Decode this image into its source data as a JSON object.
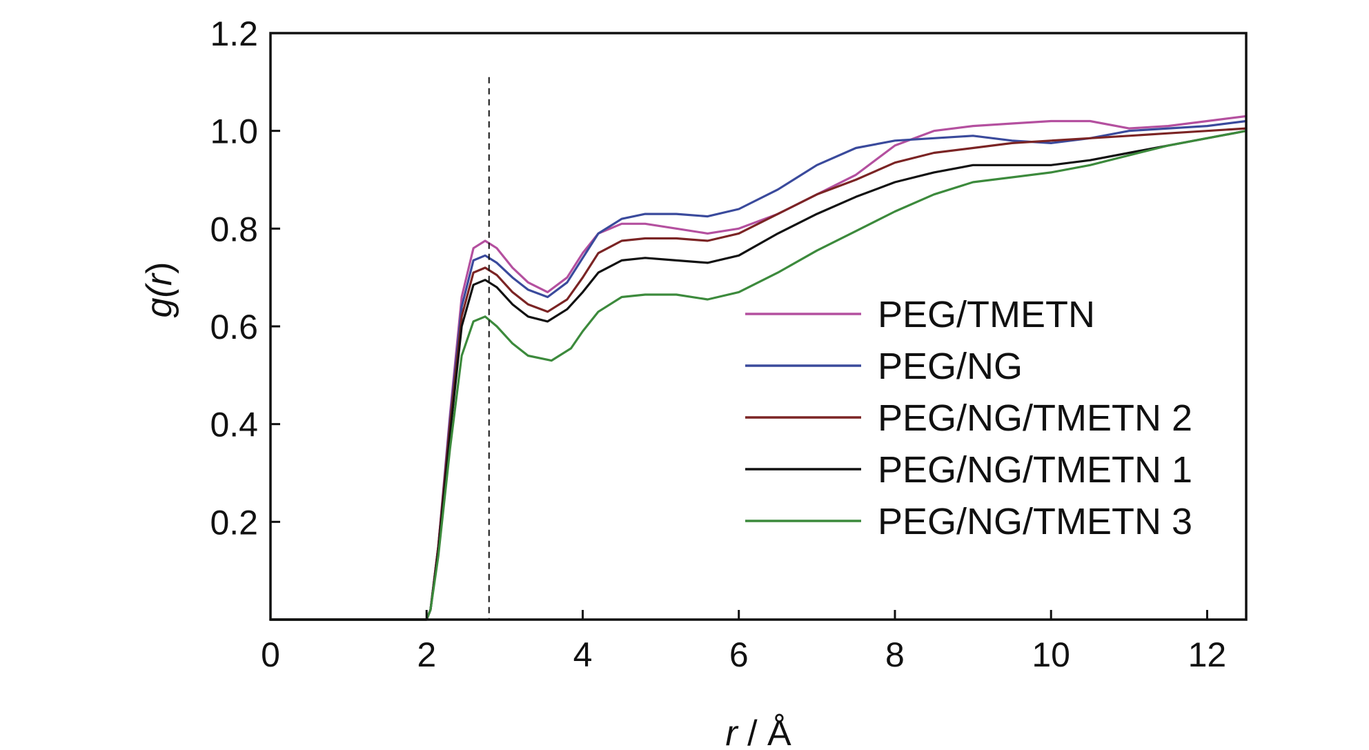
{
  "chart_data": {
    "type": "line",
    "xlabel_var": "r",
    "xlabel_unit": " / Å",
    "ylabel_fn": "g(",
    "ylabel_var": "r",
    "ylabel_close": ")",
    "xlim": [
      0,
      12.5
    ],
    "ylim": [
      0,
      1.2
    ],
    "xticks": [
      0,
      2,
      4,
      6,
      8,
      10,
      12
    ],
    "xtick_labels": [
      "0",
      "2",
      "4",
      "6",
      "8",
      "10",
      "12"
    ],
    "yticks": [
      0.2,
      0.4,
      0.6,
      0.8,
      1.0,
      1.2
    ],
    "ytick_labels": [
      "0.2",
      "0.4",
      "0.6",
      "0.8",
      "1.0",
      "1.2"
    ],
    "grid": false,
    "legend_position": "right-middle",
    "reference_line": {
      "style": "dashed",
      "x": 2.8,
      "y_max": 1.11
    },
    "series": [
      {
        "name": "PEG/TMETN",
        "color": "#b4509f",
        "x": [
          0,
          2.0,
          2.05,
          2.15,
          2.3,
          2.45,
          2.6,
          2.75,
          2.9,
          3.1,
          3.3,
          3.55,
          3.8,
          4.0,
          4.2,
          4.5,
          4.8,
          5.2,
          5.6,
          6.0,
          6.5,
          7.0,
          7.5,
          8.0,
          8.5,
          9.0,
          9.5,
          10.0,
          10.5,
          11.0,
          11.5,
          12.0,
          12.5
        ],
        "y": [
          0,
          0,
          0.02,
          0.15,
          0.42,
          0.66,
          0.76,
          0.775,
          0.76,
          0.72,
          0.69,
          0.67,
          0.7,
          0.75,
          0.79,
          0.81,
          0.81,
          0.8,
          0.79,
          0.8,
          0.83,
          0.87,
          0.91,
          0.97,
          1.0,
          1.01,
          1.015,
          1.02,
          1.02,
          1.005,
          1.01,
          1.02,
          1.03
        ]
      },
      {
        "name": "PEG/NG",
        "color": "#3a4a9c",
        "x": [
          0,
          2.0,
          2.05,
          2.15,
          2.3,
          2.45,
          2.6,
          2.75,
          2.9,
          3.1,
          3.3,
          3.55,
          3.8,
          4.0,
          4.2,
          4.5,
          4.8,
          5.2,
          5.6,
          6.0,
          6.5,
          7.0,
          7.5,
          8.0,
          8.5,
          9.0,
          9.5,
          10.0,
          10.5,
          11.0,
          11.5,
          12.0,
          12.5
        ],
        "y": [
          0,
          0,
          0.02,
          0.15,
          0.41,
          0.64,
          0.735,
          0.745,
          0.73,
          0.7,
          0.675,
          0.66,
          0.69,
          0.74,
          0.79,
          0.82,
          0.83,
          0.83,
          0.825,
          0.84,
          0.88,
          0.93,
          0.965,
          0.98,
          0.985,
          0.99,
          0.98,
          0.975,
          0.985,
          1.0,
          1.005,
          1.01,
          1.02
        ]
      },
      {
        "name": "PEG/NG/TMETN 2",
        "color": "#7b2424",
        "x": [
          0,
          2.0,
          2.05,
          2.15,
          2.3,
          2.45,
          2.6,
          2.75,
          2.9,
          3.1,
          3.3,
          3.55,
          3.8,
          4.0,
          4.2,
          4.5,
          4.8,
          5.2,
          5.6,
          6.0,
          6.5,
          7.0,
          7.5,
          8.0,
          8.5,
          9.0,
          9.5,
          10.0,
          10.5,
          11.0,
          11.5,
          12.0,
          12.5
        ],
        "y": [
          0,
          0,
          0.02,
          0.15,
          0.4,
          0.62,
          0.71,
          0.72,
          0.705,
          0.67,
          0.645,
          0.63,
          0.655,
          0.7,
          0.75,
          0.775,
          0.78,
          0.78,
          0.775,
          0.79,
          0.83,
          0.87,
          0.9,
          0.935,
          0.955,
          0.965,
          0.975,
          0.98,
          0.985,
          0.99,
          0.995,
          1.0,
          1.005
        ]
      },
      {
        "name": "PEG/NG/TMETN 1",
        "color": "#111111",
        "x": [
          0,
          2.0,
          2.05,
          2.15,
          2.3,
          2.45,
          2.6,
          2.75,
          2.9,
          3.1,
          3.3,
          3.55,
          3.8,
          4.0,
          4.2,
          4.5,
          4.8,
          5.2,
          5.6,
          6.0,
          6.5,
          7.0,
          7.5,
          8.0,
          8.5,
          9.0,
          9.5,
          10.0,
          10.5,
          11.0,
          11.5,
          12.0,
          12.5
        ],
        "y": [
          0,
          0,
          0.02,
          0.14,
          0.38,
          0.6,
          0.685,
          0.695,
          0.68,
          0.645,
          0.62,
          0.61,
          0.635,
          0.67,
          0.71,
          0.735,
          0.74,
          0.735,
          0.73,
          0.745,
          0.79,
          0.83,
          0.865,
          0.895,
          0.915,
          0.93,
          0.93,
          0.93,
          0.94,
          0.955,
          0.97,
          0.985,
          1.0
        ]
      },
      {
        "name": "PEG/NG/TMETN 3",
        "color": "#3c8a3c",
        "x": [
          0,
          2.0,
          2.05,
          2.15,
          2.3,
          2.45,
          2.6,
          2.75,
          2.9,
          3.1,
          3.3,
          3.6,
          3.85,
          4.0,
          4.2,
          4.5,
          4.8,
          5.2,
          5.6,
          6.0,
          6.5,
          7.0,
          7.5,
          8.0,
          8.5,
          9.0,
          9.5,
          10.0,
          10.5,
          11.0,
          11.5,
          12.0,
          12.5
        ],
        "y": [
          0,
          0,
          0.02,
          0.13,
          0.35,
          0.54,
          0.61,
          0.62,
          0.6,
          0.565,
          0.54,
          0.53,
          0.555,
          0.59,
          0.63,
          0.66,
          0.665,
          0.665,
          0.655,
          0.67,
          0.71,
          0.755,
          0.795,
          0.835,
          0.87,
          0.895,
          0.905,
          0.915,
          0.93,
          0.95,
          0.97,
          0.985,
          1.0
        ]
      }
    ]
  }
}
